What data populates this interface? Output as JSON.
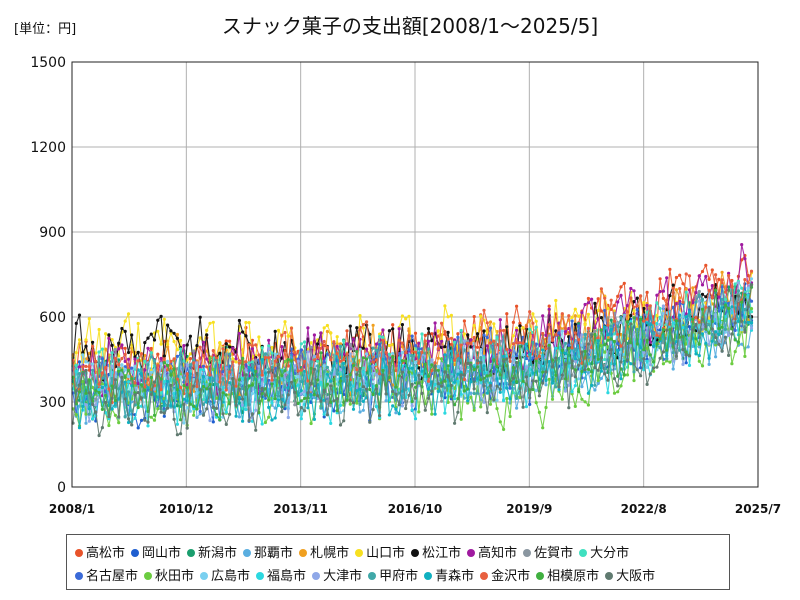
{
  "unit_label": "[単位：円]",
  "title": "スナック菓子の支出額[2008/1～2025/5]",
  "chart_data": {
    "type": "line",
    "title": "スナック菓子の支出額[2008/1～2025/5]",
    "unit": "[単位：円]",
    "ylim": [
      0,
      1500
    ],
    "yticks": [
      "0",
      "300",
      "600",
      "900",
      "1200",
      "1500"
    ],
    "xticks": [
      "2008/1",
      "2010/12",
      "2013/11",
      "2016/10",
      "2019/9",
      "2022/8",
      "2025/7"
    ],
    "grid": true,
    "legend_position": "bottom",
    "series": [
      {
        "name": "高松市",
        "color": "#e8532a",
        "base": [
          430,
          420,
          430,
          460,
          450,
          470,
          500,
          510,
          520,
          580,
          640,
          690,
          740
        ]
      },
      {
        "name": "岡山市",
        "color": "#1f5fd0",
        "base": [
          330,
          320,
          330,
          350,
          340,
          350,
          370,
          380,
          400,
          440,
          500,
          560,
          620
        ]
      },
      {
        "name": "新潟市",
        "color": "#1a9e6e",
        "base": [
          360,
          360,
          370,
          380,
          390,
          400,
          410,
          420,
          430,
          470,
          520,
          570,
          640
        ]
      },
      {
        "name": "那覇市",
        "color": "#5aaee0",
        "base": [
          340,
          340,
          350,
          360,
          360,
          370,
          380,
          390,
          400,
          430,
          480,
          530,
          590
        ]
      },
      {
        "name": "札幌市",
        "color": "#f0a020",
        "base": [
          410,
          410,
          420,
          430,
          440,
          450,
          460,
          480,
          500,
          540,
          580,
          620,
          680
        ]
      },
      {
        "name": "山口市",
        "color": "#f7e020",
        "base": [
          480,
          500,
          480,
          470,
          480,
          500,
          520,
          540,
          560,
          590,
          600,
          620,
          660
        ]
      },
      {
        "name": "松江市",
        "color": "#111111",
        "base": [
          500,
          480,
          480,
          470,
          470,
          480,
          470,
          480,
          500,
          540,
          580,
          610,
          640
        ]
      },
      {
        "name": "高知市",
        "color": "#a01aa0",
        "base": [
          440,
          430,
          430,
          440,
          450,
          460,
          470,
          490,
          510,
          550,
          600,
          660,
          760
        ]
      },
      {
        "name": "佐賀市",
        "color": "#8a96a0",
        "base": [
          380,
          370,
          370,
          380,
          390,
          400,
          410,
          420,
          440,
          480,
          520,
          570,
          630
        ]
      },
      {
        "name": "大分市",
        "color": "#40e0c0",
        "base": [
          390,
          380,
          390,
          400,
          400,
          410,
          420,
          440,
          450,
          490,
          540,
          590,
          660
        ]
      },
      {
        "name": "名古屋市",
        "color": "#3a6ad8",
        "base": [
          370,
          360,
          370,
          380,
          390,
          400,
          410,
          430,
          450,
          490,
          540,
          590,
          650
        ]
      },
      {
        "name": "秋田市",
        "color": "#6ccc40",
        "base": [
          320,
          320,
          330,
          340,
          340,
          350,
          340,
          330,
          320,
          360,
          440,
          500,
          560
        ]
      },
      {
        "name": "広島市",
        "color": "#7ad0f0",
        "base": [
          360,
          350,
          350,
          360,
          370,
          380,
          390,
          400,
          420,
          460,
          510,
          560,
          620
        ]
      },
      {
        "name": "福島市",
        "color": "#2cd8e0",
        "base": [
          310,
          300,
          310,
          320,
          330,
          340,
          350,
          360,
          380,
          420,
          480,
          530,
          600
        ]
      },
      {
        "name": "大津市",
        "color": "#8fa8e8",
        "base": [
          350,
          340,
          350,
          360,
          370,
          380,
          390,
          400,
          420,
          460,
          510,
          560,
          620
        ]
      },
      {
        "name": "甲府市",
        "color": "#40a8a8",
        "base": [
          360,
          350,
          360,
          370,
          380,
          390,
          400,
          410,
          430,
          470,
          520,
          570,
          640
        ]
      },
      {
        "name": "青森市",
        "color": "#10b0c0",
        "base": [
          330,
          320,
          330,
          340,
          350,
          360,
          370,
          380,
          400,
          440,
          490,
          540,
          600
        ]
      },
      {
        "name": "金沢市",
        "color": "#e86040",
        "base": [
          420,
          410,
          420,
          440,
          450,
          460,
          480,
          500,
          520,
          560,
          610,
          660,
          720
        ]
      },
      {
        "name": "相模原市",
        "color": "#40b040",
        "base": [
          340,
          330,
          340,
          350,
          360,
          370,
          380,
          390,
          410,
          450,
          500,
          550,
          610
        ]
      },
      {
        "name": "大阪市",
        "color": "#607a70",
        "base": [
          300,
          290,
          300,
          310,
          320,
          330,
          340,
          350,
          370,
          410,
          470,
          530,
          600
        ]
      }
    ]
  }
}
